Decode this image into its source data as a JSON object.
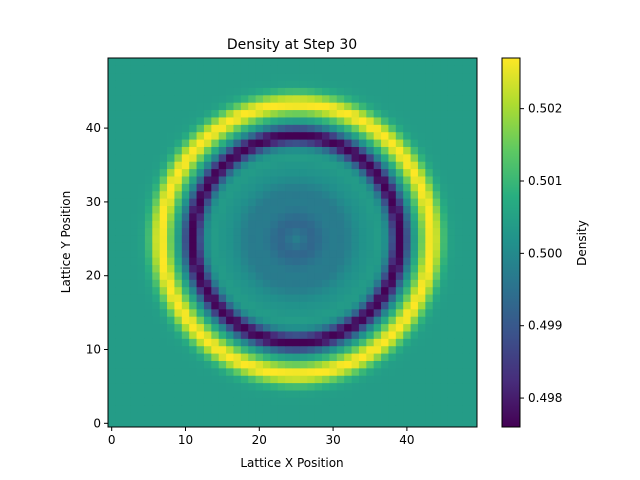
{
  "chart_data": {
    "type": "heatmap",
    "title": "Density at Step 30",
    "xlabel": "Lattice X Position",
    "ylabel": "Lattice Y Position",
    "xlim": [
      -0.5,
      49.5
    ],
    "ylim": [
      -0.5,
      49.5
    ],
    "x_ticks": [
      0,
      10,
      20,
      30,
      40
    ],
    "y_ticks": [
      0,
      10,
      20,
      30,
      40
    ],
    "grid_size": 50,
    "colormap": "viridis",
    "colorbar": {
      "label": "Density",
      "vmin": 0.4976,
      "vmax": 0.5027,
      "ticks": [
        0.498,
        0.499,
        0.5,
        0.501,
        0.502
      ],
      "tick_labels": [
        "0.498",
        "0.499",
        "0.500",
        "0.501",
        "0.502"
      ]
    },
    "field": {
      "center": [
        25,
        25
      ],
      "background": 0.5004,
      "features": [
        {
          "name": "outer ring peak",
          "radius": 18.3,
          "value": 0.5027
        },
        {
          "name": "inner ring trough",
          "radius": 14.0,
          "value": 0.4976
        },
        {
          "name": "inner interior",
          "radius_max": 11,
          "value": 0.4995
        }
      ]
    }
  }
}
